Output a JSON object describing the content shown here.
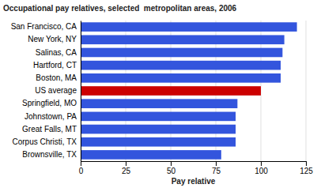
{
  "chart_data": {
    "type": "bar",
    "orientation": "horizontal",
    "title": "Occupational pay relatives, selected  metropolitan areas, 2006",
    "categories": [
      "San Francisco, CA",
      "New York, NY",
      "Salinas, CA",
      "Hartford, CT",
      "Boston, MA",
      "US average",
      "Springfield, MO",
      "Johnstown, PA",
      "Great Falls, MT",
      "Corpus Christi, TX",
      "Brownsville, TX"
    ],
    "values": [
      120,
      113,
      112,
      111,
      111,
      100,
      87,
      86,
      86,
      86,
      78
    ],
    "colors": [
      "#3355dd",
      "#3355dd",
      "#3355dd",
      "#3355dd",
      "#3355dd",
      "#cc0000",
      "#3355dd",
      "#3355dd",
      "#3355dd",
      "#3355dd",
      "#3355dd"
    ],
    "xlabel": "Pay relative",
    "xlim": [
      0,
      125
    ],
    "xticks": [
      0,
      25,
      50,
      75,
      100,
      125
    ],
    "grid": true
  }
}
